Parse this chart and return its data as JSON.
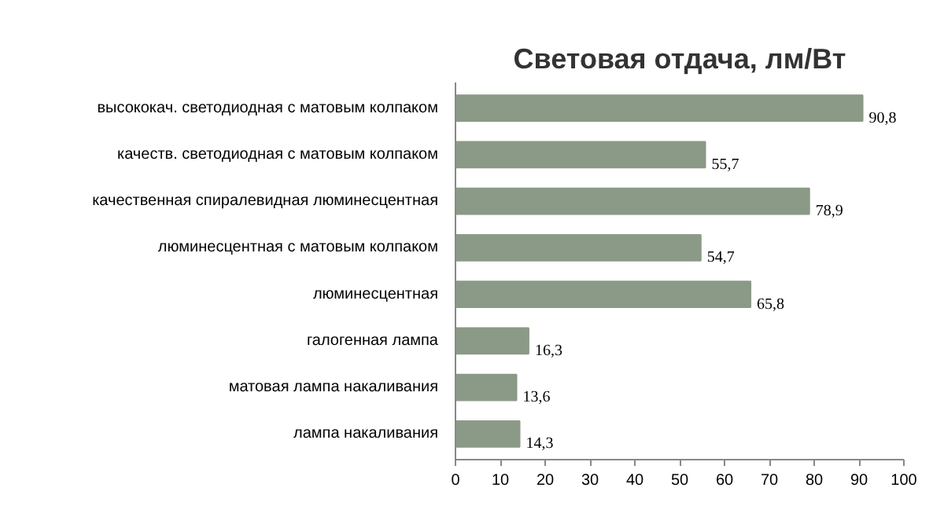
{
  "chart_data": {
    "type": "bar",
    "orientation": "horizontal",
    "title": "Световая отдача, лм/Вт",
    "categories": [
      "высококач. светодиодная с матовым колпаком",
      "качеств. светодиодная с матовым колпаком",
      "качественная спиралевидная люминесцентная",
      "люминесцентная с матовым колпаком",
      "люминесцентная",
      "галогенная лампа",
      "матовая лампа накаливания",
      "лампа накаливания"
    ],
    "values": [
      90.8,
      55.7,
      78.9,
      54.7,
      65.8,
      16.3,
      13.6,
      14.3
    ],
    "value_labels": [
      "90,8",
      "55,7",
      "78,9",
      "54,7",
      "65,8",
      "16,3",
      "13,6",
      "14,3"
    ],
    "color": "#8a9a86",
    "xlim": [
      0,
      100
    ],
    "xticks": [
      0,
      10,
      20,
      30,
      40,
      50,
      60,
      70,
      80,
      90,
      100
    ],
    "grid": false
  }
}
